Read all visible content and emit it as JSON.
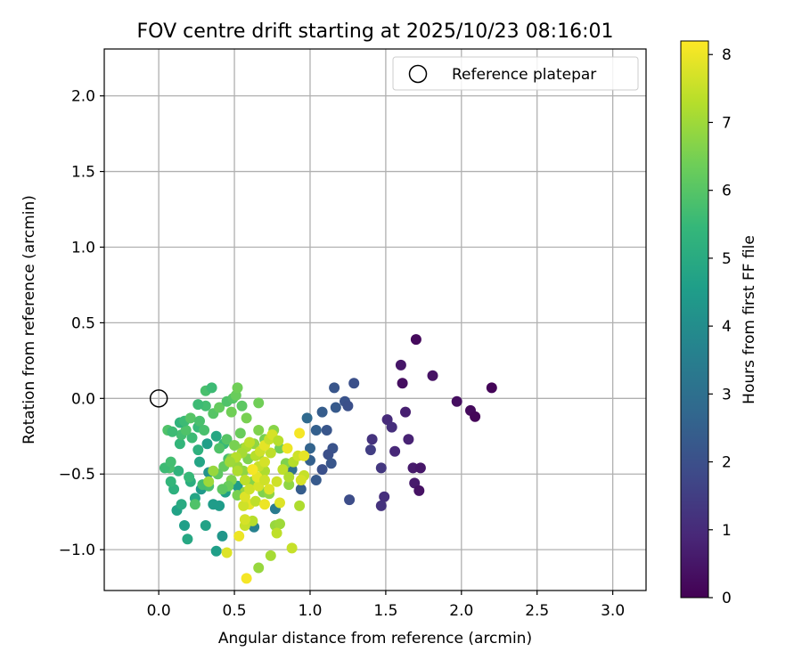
{
  "chart_data": {
    "type": "scatter",
    "title": "FOV centre drift starting at 2025/10/23 08:16:01",
    "xlabel": "Angular distance from reference (arcmin)",
    "ylabel": "Rotation from reference (arcmin)",
    "xlim": [
      -0.36,
      3.22
    ],
    "ylim": [
      -1.27,
      2.31
    ],
    "xticks": [
      0.0,
      0.5,
      1.0,
      1.5,
      2.0,
      2.5,
      3.0
    ],
    "xtick_labels": [
      "0.0",
      "0.5",
      "1.0",
      "1.5",
      "2.0",
      "2.5",
      "3.0"
    ],
    "yticks": [
      -1.0,
      -0.5,
      0.0,
      0.5,
      1.0,
      1.5,
      2.0
    ],
    "ytick_labels": [
      "−1.0",
      "−0.5",
      "0.0",
      "0.5",
      "1.0",
      "1.5",
      "2.0"
    ],
    "grid": true,
    "legend": {
      "position": "top-right",
      "entries": [
        "Reference platepar"
      ]
    },
    "reference": {
      "x": 0.0,
      "y": 0.0,
      "marker": "open-circle",
      "color": "#000000"
    },
    "colorbar": {
      "label": "Hours from first FF file",
      "range": [
        0,
        8.2
      ],
      "ticks": [
        0,
        1,
        2,
        3,
        4,
        5,
        6,
        7,
        8
      ],
      "tick_labels": [
        "0",
        "1",
        "2",
        "3",
        "4",
        "5",
        "6",
        "7",
        "8"
      ],
      "colormap": "viridis",
      "colormap_stops": [
        "#440154",
        "#482878",
        "#3e4a89",
        "#31688e",
        "#26828e",
        "#1f9e89",
        "#35b779",
        "#6ece58",
        "#b5de2b",
        "#fde725"
      ]
    },
    "points": [
      {
        "x": 1.7,
        "y": 0.39,
        "t": 0.2
      },
      {
        "x": 1.6,
        "y": 0.22,
        "t": 0.5
      },
      {
        "x": 1.61,
        "y": 0.1,
        "t": 0.3
      },
      {
        "x": 1.81,
        "y": 0.15,
        "t": 0.4
      },
      {
        "x": 2.2,
        "y": 0.07,
        "t": 0.1
      },
      {
        "x": 1.97,
        "y": -0.02,
        "t": 0.3
      },
      {
        "x": 2.06,
        "y": -0.08,
        "t": 0.2
      },
      {
        "x": 2.09,
        "y": -0.12,
        "t": 0.1
      },
      {
        "x": 1.63,
        "y": -0.09,
        "t": 0.7
      },
      {
        "x": 1.51,
        "y": -0.14,
        "t": 1.0
      },
      {
        "x": 1.54,
        "y": -0.19,
        "t": 1.1
      },
      {
        "x": 1.65,
        "y": -0.27,
        "t": 0.8
      },
      {
        "x": 1.41,
        "y": -0.27,
        "t": 1.2
      },
      {
        "x": 1.4,
        "y": -0.34,
        "t": 1.5
      },
      {
        "x": 1.56,
        "y": -0.35,
        "t": 0.9
      },
      {
        "x": 1.47,
        "y": -0.46,
        "t": 1.3
      },
      {
        "x": 1.68,
        "y": -0.46,
        "t": 0.6
      },
      {
        "x": 1.73,
        "y": -0.46,
        "t": 0.5
      },
      {
        "x": 1.69,
        "y": -0.56,
        "t": 0.6
      },
      {
        "x": 1.72,
        "y": -0.61,
        "t": 0.4
      },
      {
        "x": 1.49,
        "y": -0.65,
        "t": 1.1
      },
      {
        "x": 1.47,
        "y": -0.71,
        "t": 1.2
      },
      {
        "x": 1.29,
        "y": 0.1,
        "t": 2.0
      },
      {
        "x": 1.16,
        "y": 0.07,
        "t": 2.2
      },
      {
        "x": 1.23,
        "y": -0.02,
        "t": 2.1
      },
      {
        "x": 1.25,
        "y": -0.05,
        "t": 2.0
      },
      {
        "x": 1.17,
        "y": -0.06,
        "t": 2.3
      },
      {
        "x": 1.08,
        "y": -0.09,
        "t": 2.4
      },
      {
        "x": 0.98,
        "y": -0.13,
        "t": 2.8
      },
      {
        "x": 1.04,
        "y": -0.21,
        "t": 2.5
      },
      {
        "x": 1.11,
        "y": -0.21,
        "t": 2.2
      },
      {
        "x": 1.0,
        "y": -0.33,
        "t": 2.6
      },
      {
        "x": 1.15,
        "y": -0.33,
        "t": 2.1
      },
      {
        "x": 1.12,
        "y": -0.37,
        "t": 2.0
      },
      {
        "x": 1.0,
        "y": -0.41,
        "t": 2.5
      },
      {
        "x": 1.14,
        "y": -0.43,
        "t": 2.2
      },
      {
        "x": 1.08,
        "y": -0.47,
        "t": 2.0
      },
      {
        "x": 1.04,
        "y": -0.54,
        "t": 2.3
      },
      {
        "x": 0.94,
        "y": -0.6,
        "t": 2.4
      },
      {
        "x": 1.26,
        "y": -0.67,
        "t": 1.9
      },
      {
        "x": 0.88,
        "y": -0.47,
        "t": 3.0
      },
      {
        "x": 0.77,
        "y": -0.73,
        "t": 3.4
      },
      {
        "x": 0.63,
        "y": -0.85,
        "t": 3.6
      },
      {
        "x": 0.42,
        "y": -0.91,
        "t": 4.3
      },
      {
        "x": 0.38,
        "y": -1.01,
        "t": 4.6
      },
      {
        "x": 0.52,
        "y": -0.58,
        "t": 4.5
      },
      {
        "x": 0.4,
        "y": -0.71,
        "t": 4.5
      },
      {
        "x": 0.31,
        "y": -0.84,
        "t": 4.7
      },
      {
        "x": 0.19,
        "y": -0.93,
        "t": 4.9
      },
      {
        "x": 0.17,
        "y": -0.84,
        "t": 4.6
      },
      {
        "x": 0.12,
        "y": -0.74,
        "t": 4.7
      },
      {
        "x": 0.15,
        "y": -0.7,
        "t": 5.0
      },
      {
        "x": 0.24,
        "y": -0.66,
        "t": 4.8
      },
      {
        "x": 0.28,
        "y": -0.6,
        "t": 4.4
      },
      {
        "x": 0.36,
        "y": -0.7,
        "t": 4.5
      },
      {
        "x": 0.44,
        "y": -0.62,
        "t": 4.6
      },
      {
        "x": 0.21,
        "y": -0.55,
        "t": 5.1
      },
      {
        "x": 0.1,
        "y": -0.6,
        "t": 5.2
      },
      {
        "x": 0.08,
        "y": -0.55,
        "t": 5.4
      },
      {
        "x": 0.13,
        "y": -0.48,
        "t": 5.3
      },
      {
        "x": 0.2,
        "y": -0.52,
        "t": 5.5
      },
      {
        "x": 0.33,
        "y": -0.49,
        "t": 4.2
      },
      {
        "x": 0.27,
        "y": -0.42,
        "t": 4.8
      },
      {
        "x": 0.26,
        "y": -0.34,
        "t": 5.2
      },
      {
        "x": 0.32,
        "y": -0.3,
        "t": 4.6
      },
      {
        "x": 0.38,
        "y": -0.25,
        "t": 4.9
      },
      {
        "x": 0.43,
        "y": -0.3,
        "t": 5.5
      },
      {
        "x": 0.46,
        "y": -0.4,
        "t": 5.8
      },
      {
        "x": 0.22,
        "y": -0.26,
        "t": 5.6
      },
      {
        "x": 0.14,
        "y": -0.3,
        "t": 5.4
      },
      {
        "x": 0.15,
        "y": -0.24,
        "t": 5.7
      },
      {
        "x": 0.18,
        "y": -0.21,
        "t": 5.9
      },
      {
        "x": 0.26,
        "y": -0.19,
        "t": 5.5
      },
      {
        "x": 0.3,
        "y": -0.21,
        "t": 5.8
      },
      {
        "x": 0.06,
        "y": -0.21,
        "t": 5.9
      },
      {
        "x": 0.09,
        "y": -0.22,
        "t": 5.6
      },
      {
        "x": 0.14,
        "y": -0.16,
        "t": 5.3
      },
      {
        "x": 0.17,
        "y": -0.15,
        "t": 5.6
      },
      {
        "x": 0.21,
        "y": -0.13,
        "t": 6.0
      },
      {
        "x": 0.27,
        "y": -0.15,
        "t": 5.8
      },
      {
        "x": 0.36,
        "y": -0.1,
        "t": 6.0
      },
      {
        "x": 0.4,
        "y": -0.06,
        "t": 6.2
      },
      {
        "x": 0.31,
        "y": -0.05,
        "t": 5.7
      },
      {
        "x": 0.26,
        "y": -0.04,
        "t": 5.6
      },
      {
        "x": 0.31,
        "y": 0.05,
        "t": 5.8
      },
      {
        "x": 0.35,
        "y": 0.07,
        "t": 5.6
      },
      {
        "x": 0.45,
        "y": -0.02,
        "t": 5.9
      },
      {
        "x": 0.49,
        "y": 0.0,
        "t": 6.0
      },
      {
        "x": 0.51,
        "y": 0.02,
        "t": 6.3
      },
      {
        "x": 0.52,
        "y": 0.07,
        "t": 6.4
      },
      {
        "x": 0.55,
        "y": -0.05,
        "t": 6.1
      },
      {
        "x": 0.48,
        "y": -0.09,
        "t": 6.4
      },
      {
        "x": 0.58,
        "y": -0.13,
        "t": 6.5
      },
      {
        "x": 0.66,
        "y": -0.03,
        "t": 6.4
      },
      {
        "x": 0.54,
        "y": -0.23,
        "t": 6.3
      },
      {
        "x": 0.45,
        "y": -0.27,
        "t": 6.0
      },
      {
        "x": 0.4,
        "y": -0.33,
        "t": 5.9
      },
      {
        "x": 0.5,
        "y": -0.31,
        "t": 6.5
      },
      {
        "x": 0.56,
        "y": -0.33,
        "t": 6.6
      },
      {
        "x": 0.63,
        "y": -0.3,
        "t": 6.8
      },
      {
        "x": 0.66,
        "y": -0.21,
        "t": 6.6
      },
      {
        "x": 0.7,
        "y": -0.27,
        "t": 6.5
      },
      {
        "x": 0.75,
        "y": -0.25,
        "t": 6.9
      },
      {
        "x": 0.76,
        "y": -0.21,
        "t": 6.7
      },
      {
        "x": 0.8,
        "y": -0.33,
        "t": 6.4
      },
      {
        "x": 0.43,
        "y": -0.45,
        "t": 6.2
      },
      {
        "x": 0.39,
        "y": -0.5,
        "t": 6.1
      },
      {
        "x": 0.48,
        "y": -0.54,
        "t": 6.6
      },
      {
        "x": 0.56,
        "y": -0.48,
        "t": 6.8
      },
      {
        "x": 0.48,
        "y": -0.4,
        "t": 6.7
      },
      {
        "x": 0.52,
        "y": -0.45,
        "t": 6.9
      },
      {
        "x": 0.59,
        "y": -0.4,
        "t": 6.6
      },
      {
        "x": 0.66,
        "y": -0.37,
        "t": 6.9
      },
      {
        "x": 0.62,
        "y": -0.55,
        "t": 6.7
      },
      {
        "x": 0.57,
        "y": -0.62,
        "t": 6.9
      },
      {
        "x": 0.52,
        "y": -0.64,
        "t": 6.5
      },
      {
        "x": 0.46,
        "y": -0.58,
        "t": 6.3
      },
      {
        "x": 0.42,
        "y": -0.6,
        "t": 6.1
      },
      {
        "x": 0.33,
        "y": -0.58,
        "t": 5.8
      },
      {
        "x": 0.29,
        "y": -0.57,
        "t": 5.7
      },
      {
        "x": 0.24,
        "y": -0.7,
        "t": 5.9
      },
      {
        "x": 0.07,
        "y": -0.46,
        "t": 5.8
      },
      {
        "x": 0.04,
        "y": -0.46,
        "t": 5.6
      },
      {
        "x": 0.08,
        "y": -0.42,
        "t": 5.7
      },
      {
        "x": 0.69,
        "y": -0.62,
        "t": 6.6
      },
      {
        "x": 0.73,
        "y": -0.63,
        "t": 6.8
      },
      {
        "x": 0.77,
        "y": -0.84,
        "t": 6.9
      },
      {
        "x": 0.8,
        "y": -0.83,
        "t": 7.0
      },
      {
        "x": 0.84,
        "y": -0.43,
        "t": 6.6
      },
      {
        "x": 0.86,
        "y": -0.57,
        "t": 6.8
      },
      {
        "x": 0.7,
        "y": -0.48,
        "t": 7.2
      },
      {
        "x": 0.66,
        "y": -1.12,
        "t": 6.9
      },
      {
        "x": 0.74,
        "y": -1.04,
        "t": 7.1
      },
      {
        "x": 0.93,
        "y": -0.71,
        "t": 7.2
      },
      {
        "x": 0.78,
        "y": -0.89,
        "t": 7.4
      },
      {
        "x": 0.88,
        "y": -0.99,
        "t": 7.5
      },
      {
        "x": 0.62,
        "y": -0.81,
        "t": 7.3
      },
      {
        "x": 0.57,
        "y": -0.84,
        "t": 7.5
      },
      {
        "x": 0.57,
        "y": -0.8,
        "t": 7.7
      },
      {
        "x": 0.6,
        "y": -0.7,
        "t": 7.9
      },
      {
        "x": 0.64,
        "y": -0.68,
        "t": 7.4
      },
      {
        "x": 0.56,
        "y": -0.71,
        "t": 7.6
      },
      {
        "x": 0.57,
        "y": -0.65,
        "t": 7.8
      },
      {
        "x": 0.6,
        "y": -0.6,
        "t": 7.6
      },
      {
        "x": 0.66,
        "y": -0.58,
        "t": 7.7
      },
      {
        "x": 0.65,
        "y": -0.52,
        "t": 7.9
      },
      {
        "x": 0.66,
        "y": -0.45,
        "t": 7.5
      },
      {
        "x": 0.7,
        "y": -0.42,
        "t": 7.7
      },
      {
        "x": 0.64,
        "y": -0.38,
        "t": 7.3
      },
      {
        "x": 0.67,
        "y": -0.35,
        "t": 7.6
      },
      {
        "x": 0.74,
        "y": -0.36,
        "t": 7.4
      },
      {
        "x": 0.7,
        "y": -0.31,
        "t": 7.9
      },
      {
        "x": 0.73,
        "y": -0.27,
        "t": 7.5
      },
      {
        "x": 0.75,
        "y": -0.24,
        "t": 7.7
      },
      {
        "x": 0.79,
        "y": -0.28,
        "t": 7.3
      },
      {
        "x": 0.58,
        "y": -0.32,
        "t": 7.2
      },
      {
        "x": 0.6,
        "y": -0.29,
        "t": 7.4
      },
      {
        "x": 0.55,
        "y": -0.36,
        "t": 7.1
      },
      {
        "x": 0.51,
        "y": -0.39,
        "t": 7.3
      },
      {
        "x": 0.47,
        "y": -0.42,
        "t": 7.0
      },
      {
        "x": 0.52,
        "y": -0.48,
        "t": 7.2
      },
      {
        "x": 0.57,
        "y": -0.54,
        "t": 7.4
      },
      {
        "x": 0.7,
        "y": -0.54,
        "t": 7.6
      },
      {
        "x": 0.73,
        "y": -0.6,
        "t": 7.8
      },
      {
        "x": 0.78,
        "y": -0.55,
        "t": 7.6
      },
      {
        "x": 0.82,
        "y": -0.47,
        "t": 7.4
      },
      {
        "x": 0.86,
        "y": -0.52,
        "t": 7.2
      },
      {
        "x": 0.89,
        "y": -0.42,
        "t": 7.3
      },
      {
        "x": 0.92,
        "y": -0.38,
        "t": 7.6
      },
      {
        "x": 0.96,
        "y": -0.38,
        "t": 7.9
      },
      {
        "x": 0.96,
        "y": -0.51,
        "t": 7.5
      },
      {
        "x": 0.94,
        "y": -0.54,
        "t": 7.7
      },
      {
        "x": 0.85,
        "y": -0.33,
        "t": 8.0
      },
      {
        "x": 0.93,
        "y": -0.23,
        "t": 8.1
      },
      {
        "x": 0.8,
        "y": -0.69,
        "t": 7.8
      },
      {
        "x": 0.53,
        "y": -0.91,
        "t": 8.0
      },
      {
        "x": 0.45,
        "y": -1.02,
        "t": 7.8
      },
      {
        "x": 0.58,
        "y": -1.19,
        "t": 8.1
      },
      {
        "x": 0.36,
        "y": -0.48,
        "t": 6.9
      },
      {
        "x": 0.33,
        "y": -0.55,
        "t": 7.0
      },
      {
        "x": 0.7,
        "y": -0.7,
        "t": 8.0
      },
      {
        "x": 0.62,
        "y": -0.47,
        "t": 8.1
      }
    ]
  }
}
